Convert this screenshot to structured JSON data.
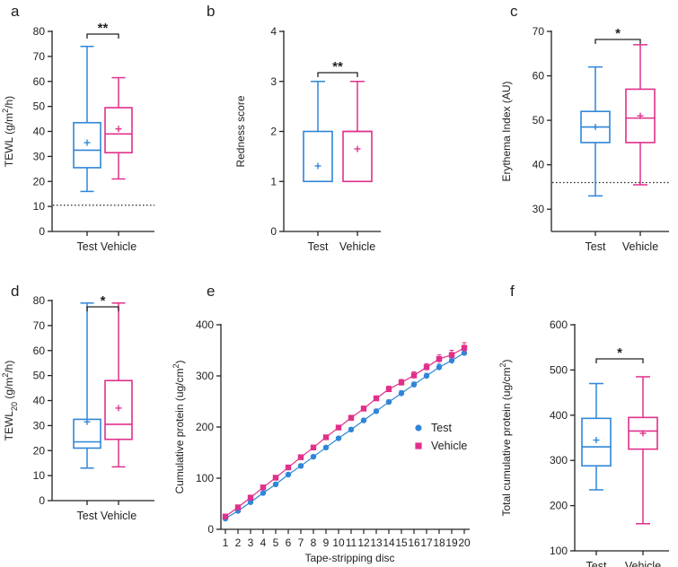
{
  "colors": {
    "test": "#2f86d8",
    "vehicle": "#e0308a",
    "axis": "#222222"
  },
  "chart_data": [
    {
      "panel": "a",
      "type": "boxplot",
      "ylabel": "TEWL (g/m²/h)",
      "ylabel_parts": {
        "pre": "TEWL (g/m",
        "sup": "2",
        "post": "/h)"
      },
      "ylim": [
        0,
        80
      ],
      "yticks": [
        0,
        10,
        20,
        30,
        40,
        50,
        60,
        70,
        80
      ],
      "ytick_labels": [
        "0",
        "10",
        "20",
        "30",
        "40",
        "50",
        "60",
        "70",
        "80"
      ],
      "categories": [
        "Test",
        "Vehicle"
      ],
      "boxes": [
        {
          "name": "Test",
          "min": 16,
          "q1": 25.5,
          "median": 32.5,
          "q3": 43.5,
          "max": 74,
          "mean": 35.5
        },
        {
          "name": "Vehicle",
          "min": 21,
          "q1": 31.5,
          "median": 39,
          "q3": 49.5,
          "max": 61.5,
          "mean": 41
        }
      ],
      "reference_line": 10.5,
      "significance": "**"
    },
    {
      "panel": "b",
      "type": "boxplot",
      "ylabel": "Redness score",
      "ylabel_parts": {
        "pre": "Redness score",
        "sup": "",
        "post": ""
      },
      "ylim": [
        0,
        4
      ],
      "yticks": [
        0,
        1,
        2,
        3,
        4
      ],
      "ytick_labels": [
        "0",
        "1",
        "2",
        "3",
        "4"
      ],
      "categories": [
        "Test",
        "Vehicle"
      ],
      "boxes": [
        {
          "name": "Test",
          "min": 1,
          "q1": 1,
          "median": 1,
          "q3": 2,
          "max": 3,
          "mean": 1.31
        },
        {
          "name": "Vehicle",
          "min": 1,
          "q1": 1,
          "median": 2,
          "q3": 2,
          "max": 3,
          "mean": 1.65
        }
      ],
      "significance": "**"
    },
    {
      "panel": "c",
      "type": "boxplot",
      "ylabel": "Erythema Index (AU)",
      "ylabel_parts": {
        "pre": "Erythema Index (AU)",
        "sup": "",
        "post": ""
      },
      "ylim": [
        25,
        70
      ],
      "yticks": [
        30,
        40,
        50,
        60,
        70
      ],
      "ytick_labels": [
        "30",
        "40",
        "50",
        "60",
        "70"
      ],
      "categories": [
        "Test",
        "Vehicle"
      ],
      "boxes": [
        {
          "name": "Test",
          "min": 33,
          "q1": 45,
          "median": 48.5,
          "q3": 52,
          "max": 62,
          "mean": 48.5
        },
        {
          "name": "Vehicle",
          "min": 35.5,
          "q1": 45,
          "median": 50.5,
          "q3": 57,
          "max": 67,
          "mean": 51
        }
      ],
      "reference_line": 36,
      "significance": "*"
    },
    {
      "panel": "d",
      "type": "boxplot",
      "ylabel": "TEWL20 (g/m²/h)",
      "ylabel_parts": {
        "pre": "TEWL",
        "sub": "20",
        "mid": " (g/m",
        "sup": "2",
        "post": "/h)"
      },
      "ylim": [
        0,
        80
      ],
      "yticks": [
        0,
        10,
        20,
        30,
        40,
        50,
        60,
        70,
        80
      ],
      "ytick_labels": [
        "0",
        "10",
        "20",
        "30",
        "40",
        "50",
        "60",
        "70",
        "80"
      ],
      "categories": [
        "Test",
        "Vehicle"
      ],
      "boxes": [
        {
          "name": "Test",
          "min": 13,
          "q1": 21,
          "median": 23.5,
          "q3": 32.5,
          "max": 79,
          "mean": 31.5
        },
        {
          "name": "Vehicle",
          "min": 13.5,
          "q1": 24.5,
          "median": 30.5,
          "q3": 48,
          "max": 79,
          "mean": 37
        }
      ],
      "significance": "*"
    },
    {
      "panel": "e",
      "type": "line",
      "xlabel": "Tape-stripping disc",
      "ylabel": "Cumulative protein (ug/cm²)",
      "ylabel_parts": {
        "pre": "Cumulative protein (ug/cm",
        "sup": "2",
        "post": ")"
      },
      "x": [
        1,
        2,
        3,
        4,
        5,
        6,
        7,
        8,
        9,
        10,
        11,
        12,
        13,
        14,
        15,
        16,
        17,
        18,
        19,
        20
      ],
      "xtick_labels": [
        "1",
        "2",
        "3",
        "4",
        "5",
        "6",
        "7",
        "8",
        "9",
        "10",
        "11",
        "12",
        "13",
        "14",
        "15",
        "16",
        "17",
        "18",
        "19",
        "20"
      ],
      "ylim": [
        0,
        400
      ],
      "yticks": [
        0,
        100,
        200,
        300,
        400
      ],
      "ytick_labels": [
        "0",
        "100",
        "200",
        "300",
        "400"
      ],
      "legend": [
        "Test",
        "Vehicle"
      ],
      "series": [
        {
          "name": "Test",
          "marker": "circle",
          "values": [
            21,
            36,
            53,
            71,
            88,
            107,
            124,
            142,
            160,
            178,
            195,
            213,
            231,
            249,
            266,
            283,
            300,
            317,
            330,
            345
          ],
          "errors": [
            2,
            2,
            2,
            2,
            2,
            3,
            3,
            3,
            3,
            3,
            4,
            4,
            4,
            4,
            5,
            5,
            5,
            6,
            6,
            6
          ]
        },
        {
          "name": "Vehicle",
          "marker": "square",
          "values": [
            25,
            43,
            62,
            82,
            101,
            121,
            141,
            160,
            180,
            199,
            218,
            236,
            256,
            274,
            287,
            301,
            317,
            333,
            341,
            355
          ],
          "errors": [
            2,
            2,
            3,
            3,
            3,
            3,
            4,
            4,
            4,
            4,
            5,
            5,
            5,
            6,
            6,
            7,
            7,
            8,
            9,
            10
          ]
        }
      ]
    },
    {
      "panel": "f",
      "type": "boxplot",
      "ylabel": "Total cumulative protein (ug/cm²)",
      "ylabel_parts": {
        "pre": "Total cumulative protein (ug/cm",
        "sup": "2",
        "post": ")"
      },
      "ylim": [
        100,
        600
      ],
      "yticks": [
        100,
        200,
        300,
        400,
        500,
        600
      ],
      "ytick_labels": [
        "100",
        "200",
        "300",
        "400",
        "500",
        "600"
      ],
      "categories": [
        "Test",
        "Vehicle"
      ],
      "boxes": [
        {
          "name": "Test",
          "min": 235,
          "q1": 288,
          "median": 330,
          "q3": 393,
          "max": 470,
          "mean": 345
        },
        {
          "name": "Vehicle",
          "min": 160,
          "q1": 325,
          "median": 365,
          "q3": 395,
          "max": 485,
          "mean": 360
        }
      ],
      "significance": "*"
    }
  ]
}
